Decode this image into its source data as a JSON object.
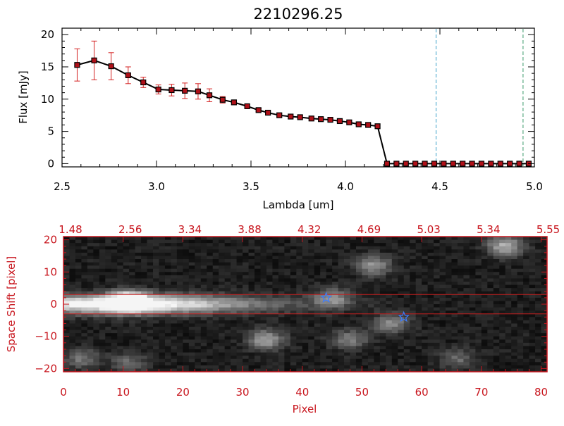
{
  "colors": {
    "frame": "#000000",
    "spectrum_line": "#000000",
    "point_fill": "#b01018",
    "error_bar": "#d42020",
    "axis_red": "#c8161e",
    "vline_cyan": "#3aa0c8",
    "vline_green": "#3a9a6a",
    "star_blue": "#3c7cff",
    "stripe_line": "#c81e1e"
  },
  "chart_data": [
    {
      "type": "line",
      "title": "2210296.25",
      "xlabel": "Lambda [um]",
      "ylabel": "Flux [mJy]",
      "xlim": [
        2.5,
        5.0
      ],
      "ylim": [
        -0.5,
        21
      ],
      "xticks": [
        2.5,
        3.0,
        3.5,
        4.0,
        4.5,
        5.0
      ],
      "xtick_labels": [
        "2.5",
        "3.0",
        "3.5",
        "4.0",
        "4.5",
        "5.0"
      ],
      "yticks": [
        0,
        5,
        10,
        15,
        20
      ],
      "ytick_labels": [
        "0",
        "5",
        "10",
        "15",
        "20"
      ],
      "grid": false,
      "series": [
        {
          "x": [
            2.58,
            2.67,
            2.76,
            2.85,
            2.93,
            3.01,
            3.08,
            3.15,
            3.22,
            3.28,
            3.35,
            3.41,
            3.48,
            3.54,
            3.59,
            3.65,
            3.71,
            3.76,
            3.82,
            3.87,
            3.92,
            3.97,
            4.02,
            4.07,
            4.12,
            4.17,
            4.22,
            4.27,
            4.32,
            4.37,
            4.42,
            4.47,
            4.52,
            4.57,
            4.62,
            4.67,
            4.72,
            4.77,
            4.82,
            4.87,
            4.92,
            4.97
          ],
          "y": [
            15.3,
            16.0,
            15.1,
            13.7,
            12.6,
            11.5,
            11.4,
            11.3,
            11.2,
            10.6,
            9.9,
            9.5,
            8.9,
            8.3,
            7.9,
            7.5,
            7.3,
            7.2,
            7.0,
            6.9,
            6.8,
            6.6,
            6.4,
            6.1,
            6.0,
            5.8,
            0.0,
            0.0,
            0.0,
            0.0,
            0.0,
            0.0,
            0.0,
            0.0,
            0.0,
            0.0,
            0.0,
            0.0,
            0.0,
            0.0,
            0.0,
            0.0
          ],
          "yerr": [
            2.5,
            3.0,
            2.1,
            1.3,
            0.8,
            0.7,
            0.9,
            1.2,
            1.2,
            1.0,
            0.5,
            0.3,
            0.3,
            0.2,
            0.2,
            0.2,
            0.2,
            0.2,
            0.2,
            0.2,
            0.2,
            0.2,
            0.2,
            0.2,
            0.2,
            0.2,
            0,
            0,
            0,
            0,
            0,
            0,
            0,
            0,
            0,
            0,
            0,
            0,
            0,
            0,
            0,
            0
          ]
        }
      ],
      "vlines": [
        {
          "x": 4.48,
          "style": "dashed",
          "color": "cyan"
        },
        {
          "x": 4.94,
          "style": "dashed",
          "color": "green"
        }
      ]
    },
    {
      "type": "heatmap",
      "xlabel": "Pixel",
      "ylabel": "Space Shift [pixel]",
      "xlim": [
        0,
        81
      ],
      "ylim": [
        -21,
        21
      ],
      "xticks": [
        0,
        10,
        20,
        30,
        40,
        50,
        60,
        70,
        80
      ],
      "xtick_labels": [
        "0",
        "10",
        "20",
        "30",
        "40",
        "50",
        "60",
        "70",
        "80"
      ],
      "yticks": [
        -20,
        -10,
        0,
        10,
        20
      ],
      "ytick_labels": [
        "−20",
        "−10",
        "0",
        "10",
        "20"
      ],
      "top_axis_ticks": [
        0,
        10,
        20,
        30,
        40,
        50,
        60,
        70,
        80
      ],
      "top_axis_labels": [
        "1.48",
        "2.56",
        "3.34",
        "3.88",
        "4.32",
        "4.69",
        "5.03",
        "5.34",
        "5.55"
      ],
      "colormap": "gray",
      "extraction_lines_y": [
        3,
        -3
      ],
      "trace": {
        "y_offset": 0,
        "peak_x": 11,
        "fade_x": 57
      },
      "blobs": [
        {
          "x": 11,
          "y": 1,
          "amp": 1.0
        },
        {
          "x": 45,
          "y": 2,
          "amp": 0.45
        },
        {
          "x": 52,
          "y": 12,
          "amp": 0.5
        },
        {
          "x": 74,
          "y": 18,
          "amp": 0.6
        },
        {
          "x": 34,
          "y": -11,
          "amp": 0.55
        },
        {
          "x": 48,
          "y": -11,
          "amp": 0.4
        },
        {
          "x": 55,
          "y": -6,
          "amp": 0.45
        },
        {
          "x": 3,
          "y": -17,
          "amp": 0.35
        },
        {
          "x": 11,
          "y": -18,
          "amp": 0.3
        },
        {
          "x": 66,
          "y": -17,
          "amp": 0.3
        }
      ],
      "stars": [
        {
          "x": 44,
          "y": 2
        },
        {
          "x": 57,
          "y": -4
        }
      ]
    }
  ]
}
